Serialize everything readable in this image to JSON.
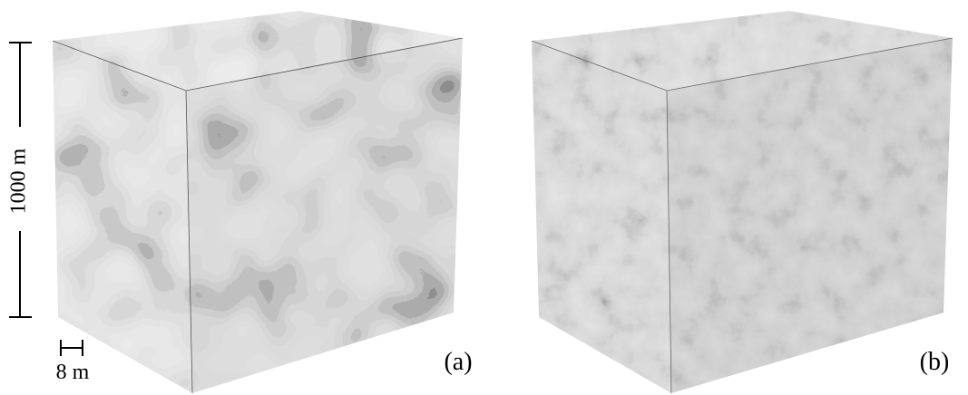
{
  "labels": {
    "scale_vertical": "1000 m",
    "scale_horizontal": "8 m",
    "panel_a": "(a)",
    "panel_b": "(b)"
  }
}
